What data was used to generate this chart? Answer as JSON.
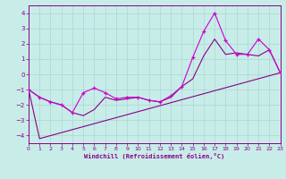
{
  "xlabel": "Windchill (Refroidissement éolien,°C)",
  "xlim": [
    0,
    23
  ],
  "ylim": [
    -4.5,
    4.5
  ],
  "yticks": [
    -4,
    -3,
    -2,
    -1,
    0,
    1,
    2,
    3,
    4
  ],
  "xticks": [
    0,
    1,
    2,
    3,
    4,
    5,
    6,
    7,
    8,
    9,
    10,
    11,
    12,
    13,
    14,
    15,
    16,
    17,
    18,
    19,
    20,
    21,
    22,
    23
  ],
  "bg_color": "#c8ece8",
  "grid_color": "#a8d8d4",
  "line_color": "#880088",
  "line_color_jagged": "#cc00cc",
  "jagged_x": [
    0,
    1,
    2,
    3,
    4,
    5,
    6,
    7,
    8,
    9,
    10,
    11,
    12,
    13,
    14,
    15,
    16,
    17,
    18,
    19,
    20,
    21,
    22,
    23
  ],
  "jagged_y": [
    -1.0,
    -1.5,
    -1.8,
    -2.0,
    -2.5,
    -1.2,
    -0.9,
    -1.2,
    -1.6,
    -1.5,
    -1.5,
    -1.7,
    -1.8,
    -1.4,
    -0.8,
    1.1,
    2.8,
    4.0,
    2.2,
    1.3,
    1.3,
    2.3,
    1.6,
    0.1
  ],
  "smooth_x": [
    0,
    1,
    2,
    3,
    4,
    5,
    6,
    7,
    8,
    9,
    10,
    11,
    12,
    13,
    14,
    15,
    16,
    17,
    18,
    19,
    20,
    21,
    22,
    23
  ],
  "smooth_y": [
    -1.0,
    -1.5,
    -1.8,
    -2.0,
    -2.5,
    -2.7,
    -2.3,
    -1.5,
    -1.7,
    -1.6,
    -1.5,
    -1.7,
    -1.8,
    -1.5,
    -0.8,
    -0.3,
    1.2,
    2.3,
    1.3,
    1.4,
    1.3,
    1.2,
    1.6,
    0.1
  ],
  "trend_x": [
    0,
    1,
    23
  ],
  "trend_y": [
    -1.0,
    -4.2,
    0.1
  ]
}
